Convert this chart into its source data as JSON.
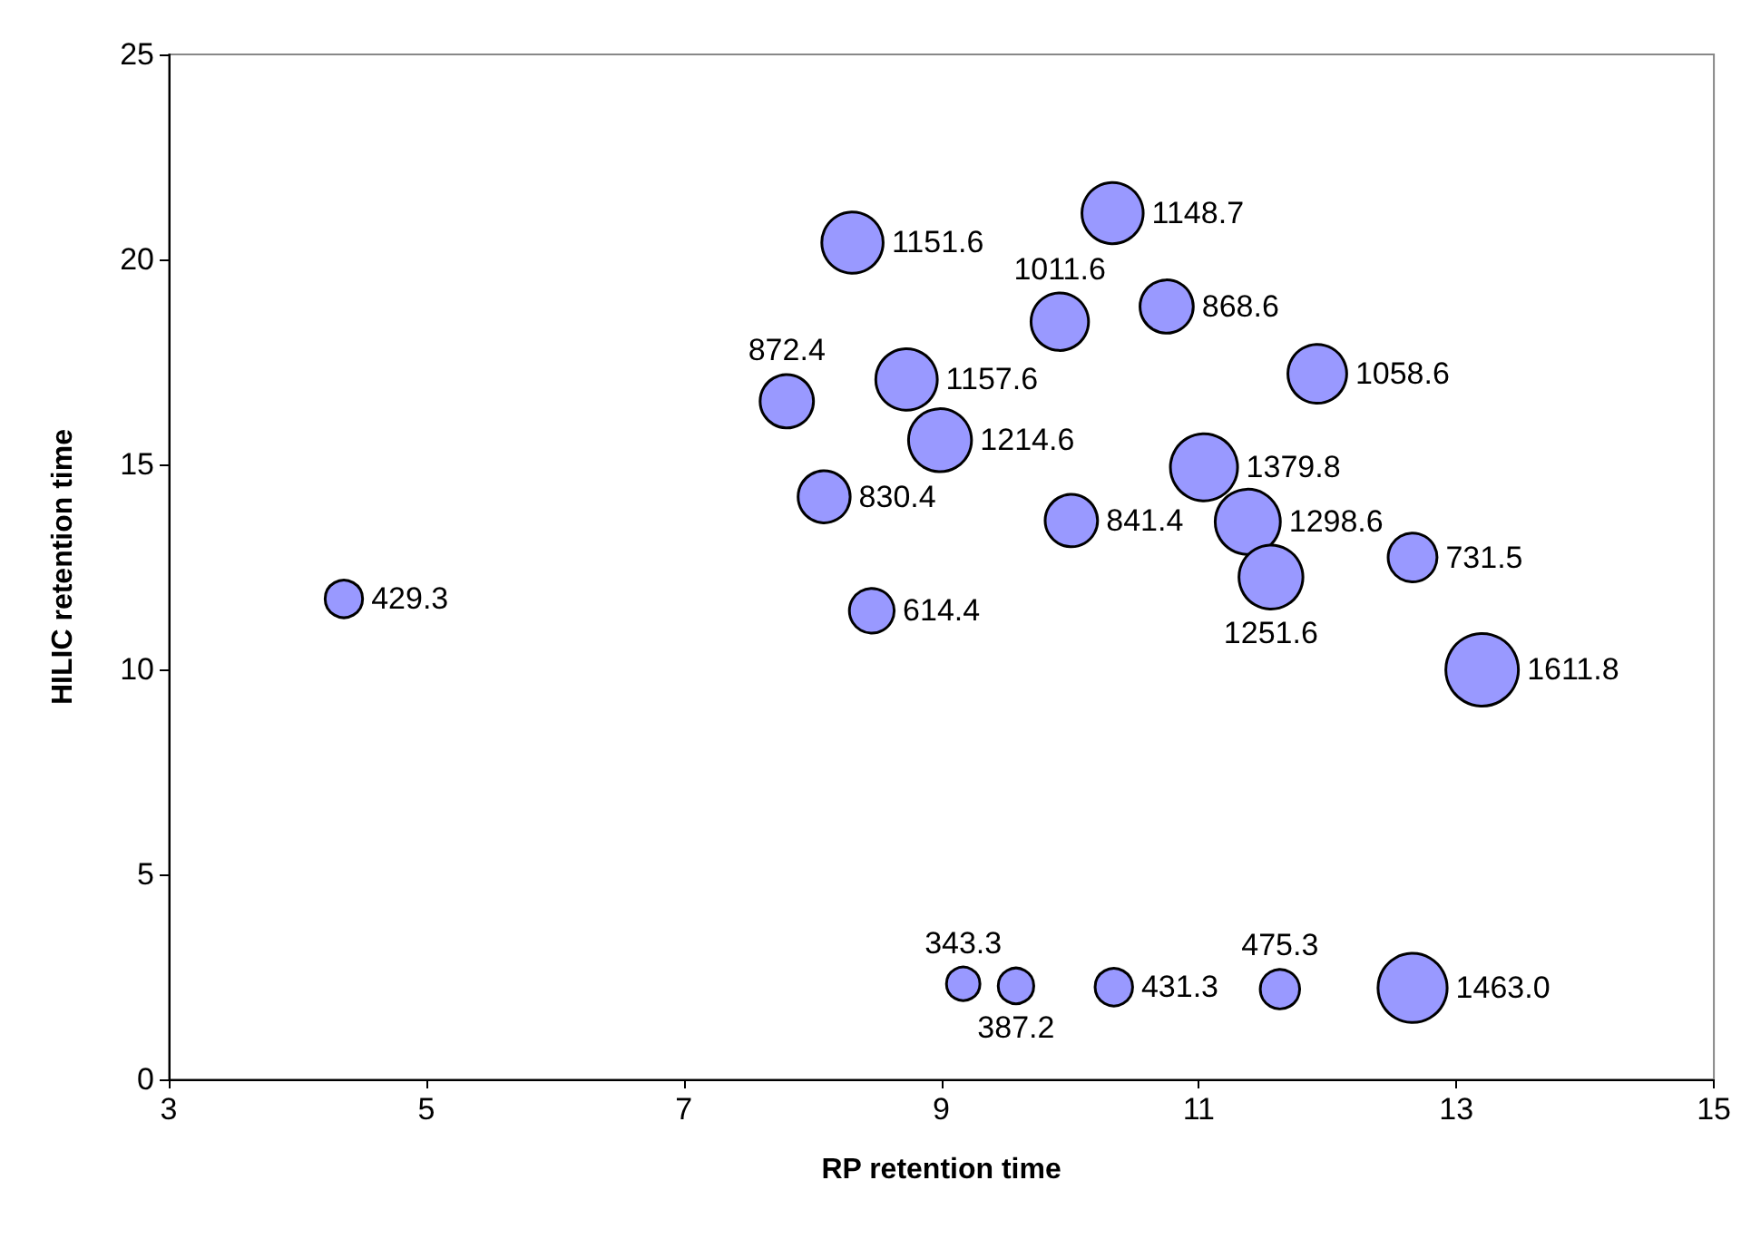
{
  "chart_data": {
    "type": "bubble",
    "xlabel": "RP retention time",
    "ylabel": "HILIC retention time",
    "xlim": [
      3,
      15
    ],
    "xticks": [
      3,
      5,
      7,
      9,
      11,
      13,
      15
    ],
    "ylim": [
      0,
      25
    ],
    "yticks": [
      0,
      5,
      10,
      15,
      20,
      25
    ],
    "series": [
      {
        "color": "#9999ff",
        "x": [
          4.36,
          8.31,
          10.33,
          9.92,
          10.75,
          7.8,
          8.73,
          11.92,
          8.99,
          11.04,
          8.09,
          10.01,
          11.38,
          12.66,
          11.56,
          8.46,
          13.2,
          9.17,
          9.58,
          10.34,
          11.63,
          12.66
        ],
        "values": [
          11.72,
          20.41,
          21.13,
          18.48,
          18.85,
          16.54,
          17.07,
          17.21,
          15.59,
          14.93,
          14.21,
          13.63,
          13.6,
          12.73,
          12.25,
          11.43,
          9.99,
          2.33,
          2.28,
          2.25,
          2.2,
          2.23
        ],
        "sizes": [
          429.3,
          1151.6,
          1148.7,
          1011.6,
          868.6,
          872.4,
          1157.6,
          1058.6,
          1214.6,
          1379.8,
          830.4,
          841.4,
          1298.6,
          731.5,
          1251.6,
          614.4,
          1611.8,
          343.3,
          387.2,
          431.3,
          475.3,
          1463.0
        ],
        "value_labels": [
          "429.3",
          "1151.6",
          "1148.7",
          "1011.6",
          "868.6",
          "872.4",
          "1157.6",
          "1058.6",
          "1214.6",
          "1379.8",
          "830.4",
          "841.4",
          "1298.6",
          "731.5",
          "1251.6",
          "614.4",
          "1611.8",
          "343.3",
          "387.2",
          "431.3",
          "475.3",
          "1463.0"
        ]
      }
    ]
  }
}
